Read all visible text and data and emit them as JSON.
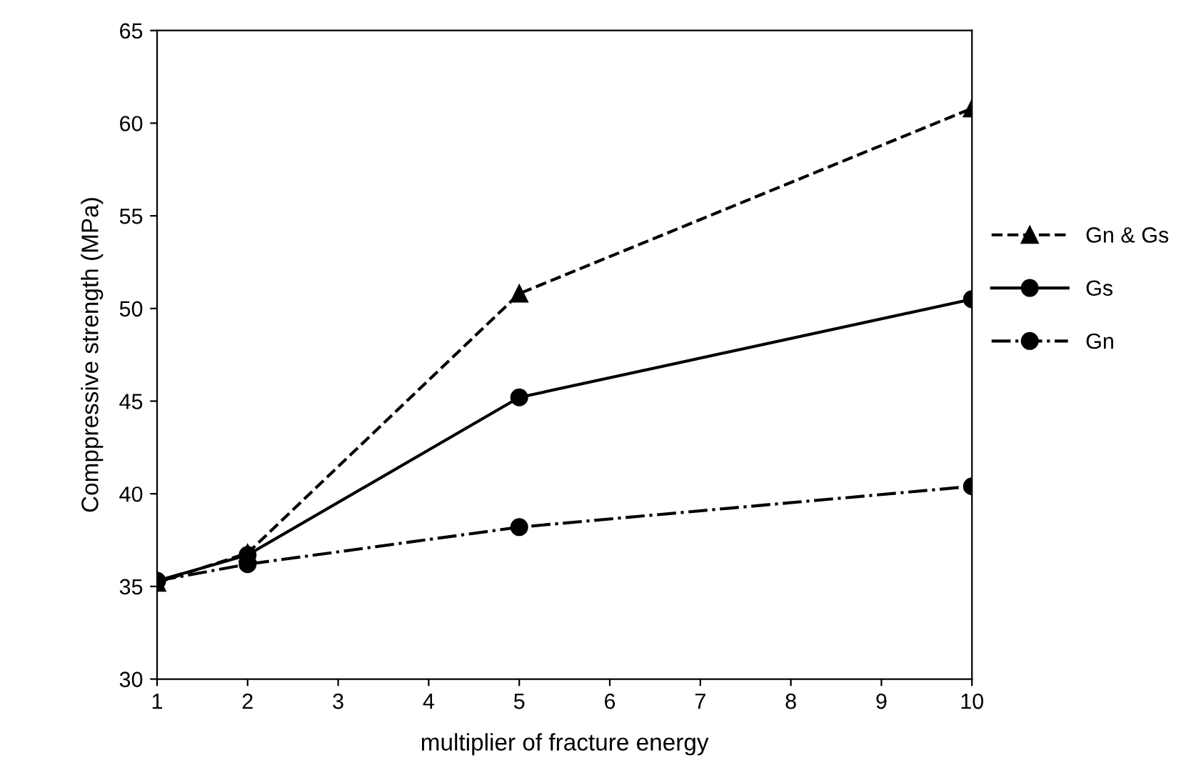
{
  "chart_data": {
    "type": "line",
    "xlabel": "multiplier of fracture energy",
    "ylabel": "Comppressive strength (MPa)",
    "x": [
      1,
      2,
      5,
      10
    ],
    "series": [
      {
        "name": "Gn & Gs",
        "color": "#000000",
        "values": [
          35.2,
          36.8,
          50.8,
          60.8
        ],
        "marker": "triangle",
        "line_style": "dashed"
      },
      {
        "name": "Gs",
        "color": "#000000",
        "values": [
          35.3,
          36.7,
          45.2,
          50.5
        ],
        "marker": "circle",
        "line_style": "solid"
      },
      {
        "name": "Gn",
        "color": "#000000",
        "values": [
          35.3,
          36.2,
          38.2,
          40.4
        ],
        "marker": "circle",
        "line_style": "dashdot"
      }
    ],
    "xlim": [
      1,
      10
    ],
    "xticks": [
      1,
      2,
      3,
      4,
      5,
      6,
      7,
      8,
      9,
      10
    ],
    "ylim": [
      30,
      65
    ],
    "yticks": [
      30,
      35,
      40,
      45,
      50,
      55,
      60,
      65
    ],
    "grid": false,
    "legend": "right"
  }
}
